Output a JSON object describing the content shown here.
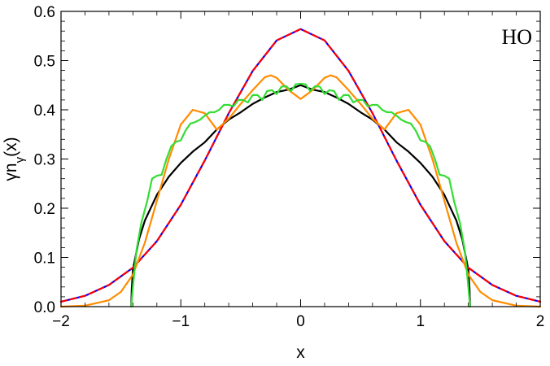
{
  "chart_data": {
    "type": "line",
    "title": "",
    "xlabel": "x",
    "ylabel": "γn_γ(x)",
    "xlim": [
      -2,
      2
    ],
    "ylim": [
      0,
      0.6
    ],
    "grid": false,
    "legend": "none",
    "annotation": "HO",
    "x_ticks": [
      -2,
      -1,
      0,
      1,
      2
    ],
    "x_tick_labels": [
      "−2",
      "−1",
      "0",
      "1",
      "2"
    ],
    "y_ticks": [
      0,
      0.1,
      0.2,
      0.3,
      0.4,
      0.5,
      0.6
    ],
    "y_tick_labels": [
      "0.0",
      "0.1",
      "0.2",
      "0.3",
      "0.4",
      "0.5",
      "0.6"
    ],
    "series": [
      {
        "color": "#000000",
        "style": "solid",
        "points": [
          [
            -1.414,
            0
          ],
          [
            -1.41,
            0.034
          ],
          [
            -1.4,
            0.075
          ],
          [
            -1.35,
            0.136
          ],
          [
            -1.3,
            0.175
          ],
          [
            -1.2,
            0.227
          ],
          [
            -1.1,
            0.264
          ],
          [
            -1.0,
            0.292
          ],
          [
            -0.9,
            0.315
          ],
          [
            -0.8,
            0.334
          ],
          [
            -0.7,
            0.36
          ],
          [
            -0.6,
            0.38
          ],
          [
            -0.5,
            0.395
          ],
          [
            -0.4,
            0.412
          ],
          [
            -0.3,
            0.425
          ],
          [
            -0.2,
            0.436
          ],
          [
            -0.1,
            0.441
          ],
          [
            0,
            0.45
          ],
          [
            0.1,
            0.441
          ],
          [
            0.2,
            0.436
          ],
          [
            0.3,
            0.425
          ],
          [
            0.4,
            0.412
          ],
          [
            0.5,
            0.395
          ],
          [
            0.6,
            0.38
          ],
          [
            0.7,
            0.36
          ],
          [
            0.8,
            0.334
          ],
          [
            0.9,
            0.315
          ],
          [
            1.0,
            0.292
          ],
          [
            1.1,
            0.264
          ],
          [
            1.2,
            0.227
          ],
          [
            1.3,
            0.175
          ],
          [
            1.35,
            0.136
          ],
          [
            1.4,
            0.075
          ],
          [
            1.41,
            0.034
          ],
          [
            1.414,
            0
          ]
        ]
      },
      {
        "color": "#0000ff",
        "style": "solid",
        "points": [
          [
            -2.0,
            0.01
          ],
          [
            -1.8,
            0.022
          ],
          [
            -1.6,
            0.044
          ],
          [
            -1.4,
            0.079
          ],
          [
            -1.2,
            0.133
          ],
          [
            -1.0,
            0.207
          ],
          [
            -0.8,
            0.297
          ],
          [
            -0.6,
            0.393
          ],
          [
            -0.4,
            0.479
          ],
          [
            -0.2,
            0.541
          ],
          [
            0,
            0.564
          ],
          [
            0.2,
            0.541
          ],
          [
            0.4,
            0.479
          ],
          [
            0.6,
            0.393
          ],
          [
            0.8,
            0.297
          ],
          [
            1.0,
            0.207
          ],
          [
            1.2,
            0.133
          ],
          [
            1.4,
            0.079
          ],
          [
            1.6,
            0.044
          ],
          [
            1.8,
            0.022
          ],
          [
            2.0,
            0.01
          ]
        ]
      },
      {
        "color": "#ff0000",
        "style": "dashed",
        "points": [
          [
            -2.0,
            0.01
          ],
          [
            -1.8,
            0.022
          ],
          [
            -1.6,
            0.044
          ],
          [
            -1.4,
            0.079
          ],
          [
            -1.2,
            0.133
          ],
          [
            -1.0,
            0.207
          ],
          [
            -0.8,
            0.297
          ],
          [
            -0.6,
            0.393
          ],
          [
            -0.4,
            0.479
          ],
          [
            -0.2,
            0.541
          ],
          [
            0,
            0.564
          ],
          [
            0.2,
            0.541
          ],
          [
            0.4,
            0.479
          ],
          [
            0.6,
            0.393
          ],
          [
            0.8,
            0.297
          ],
          [
            1.0,
            0.207
          ],
          [
            1.2,
            0.133
          ],
          [
            1.4,
            0.079
          ],
          [
            1.6,
            0.044
          ],
          [
            1.8,
            0.022
          ],
          [
            2.0,
            0.01
          ]
        ]
      },
      {
        "color": "#ff8c00",
        "style": "solid",
        "points": [
          [
            -2.0,
            0.0
          ],
          [
            -1.8,
            0.002
          ],
          [
            -1.6,
            0.013
          ],
          [
            -1.5,
            0.03
          ],
          [
            -1.4,
            0.065
          ],
          [
            -1.3,
            0.13
          ],
          [
            -1.2,
            0.215
          ],
          [
            -1.1,
            0.3
          ],
          [
            -1.0,
            0.37
          ],
          [
            -0.9,
            0.4
          ],
          [
            -0.8,
            0.393
          ],
          [
            -0.7,
            0.36
          ],
          [
            -0.6,
            0.382
          ],
          [
            -0.5,
            0.412
          ],
          [
            -0.4,
            0.44
          ],
          [
            -0.3,
            0.466
          ],
          [
            -0.25,
            0.47
          ],
          [
            -0.2,
            0.465
          ],
          [
            -0.1,
            0.44
          ],
          [
            0,
            0.422
          ],
          [
            0.1,
            0.44
          ],
          [
            0.2,
            0.465
          ],
          [
            0.25,
            0.47
          ],
          [
            0.3,
            0.466
          ],
          [
            0.4,
            0.44
          ],
          [
            0.5,
            0.412
          ],
          [
            0.6,
            0.382
          ],
          [
            0.7,
            0.36
          ],
          [
            0.8,
            0.393
          ],
          [
            0.9,
            0.4
          ],
          [
            1.0,
            0.37
          ],
          [
            1.1,
            0.3
          ],
          [
            1.2,
            0.215
          ],
          [
            1.3,
            0.13
          ],
          [
            1.4,
            0.065
          ],
          [
            1.5,
            0.03
          ],
          [
            1.6,
            0.013
          ],
          [
            1.8,
            0.002
          ],
          [
            2.0,
            0.0
          ]
        ]
      },
      {
        "color": "#33dd33",
        "style": "solid",
        "points": [
          [
            -1.414,
            0
          ],
          [
            -1.4,
            0.04
          ],
          [
            -1.37,
            0.115
          ],
          [
            -1.33,
            0.17
          ],
          [
            -1.28,
            0.215
          ],
          [
            -1.24,
            0.26
          ],
          [
            -1.2,
            0.266
          ],
          [
            -1.16,
            0.268
          ],
          [
            -1.12,
            0.3
          ],
          [
            -1.08,
            0.326
          ],
          [
            -1.04,
            0.335
          ],
          [
            -1.0,
            0.338
          ],
          [
            -0.96,
            0.358
          ],
          [
            -0.92,
            0.372
          ],
          [
            -0.88,
            0.375
          ],
          [
            -0.84,
            0.38
          ],
          [
            -0.8,
            0.388
          ],
          [
            -0.76,
            0.395
          ],
          [
            -0.72,
            0.395
          ],
          [
            -0.68,
            0.4
          ],
          [
            -0.64,
            0.41
          ],
          [
            -0.6,
            0.41
          ],
          [
            -0.56,
            0.407
          ],
          [
            -0.52,
            0.42
          ],
          [
            -0.48,
            0.42
          ],
          [
            -0.44,
            0.415
          ],
          [
            -0.4,
            0.43
          ],
          [
            -0.36,
            0.43
          ],
          [
            -0.32,
            0.42
          ],
          [
            -0.28,
            0.438
          ],
          [
            -0.24,
            0.44
          ],
          [
            -0.2,
            0.432
          ],
          [
            -0.16,
            0.447
          ],
          [
            -0.12,
            0.448
          ],
          [
            -0.08,
            0.438
          ],
          [
            -0.04,
            0.452
          ],
          [
            0,
            0.453
          ],
          [
            0.04,
            0.452
          ],
          [
            0.08,
            0.438
          ],
          [
            0.12,
            0.448
          ],
          [
            0.16,
            0.447
          ],
          [
            0.2,
            0.432
          ],
          [
            0.24,
            0.44
          ],
          [
            0.28,
            0.438
          ],
          [
            0.32,
            0.42
          ],
          [
            0.36,
            0.43
          ],
          [
            0.4,
            0.43
          ],
          [
            0.44,
            0.415
          ],
          [
            0.48,
            0.42
          ],
          [
            0.52,
            0.42
          ],
          [
            0.56,
            0.407
          ],
          [
            0.6,
            0.41
          ],
          [
            0.64,
            0.41
          ],
          [
            0.68,
            0.4
          ],
          [
            0.72,
            0.395
          ],
          [
            0.76,
            0.395
          ],
          [
            0.8,
            0.388
          ],
          [
            0.84,
            0.38
          ],
          [
            0.88,
            0.375
          ],
          [
            0.92,
            0.372
          ],
          [
            0.96,
            0.358
          ],
          [
            1.0,
            0.338
          ],
          [
            1.04,
            0.335
          ],
          [
            1.08,
            0.326
          ],
          [
            1.12,
            0.3
          ],
          [
            1.16,
            0.268
          ],
          [
            1.2,
            0.266
          ],
          [
            1.24,
            0.26
          ],
          [
            1.28,
            0.215
          ],
          [
            1.33,
            0.17
          ],
          [
            1.37,
            0.115
          ],
          [
            1.4,
            0.04
          ],
          [
            1.414,
            0
          ]
        ]
      }
    ]
  }
}
